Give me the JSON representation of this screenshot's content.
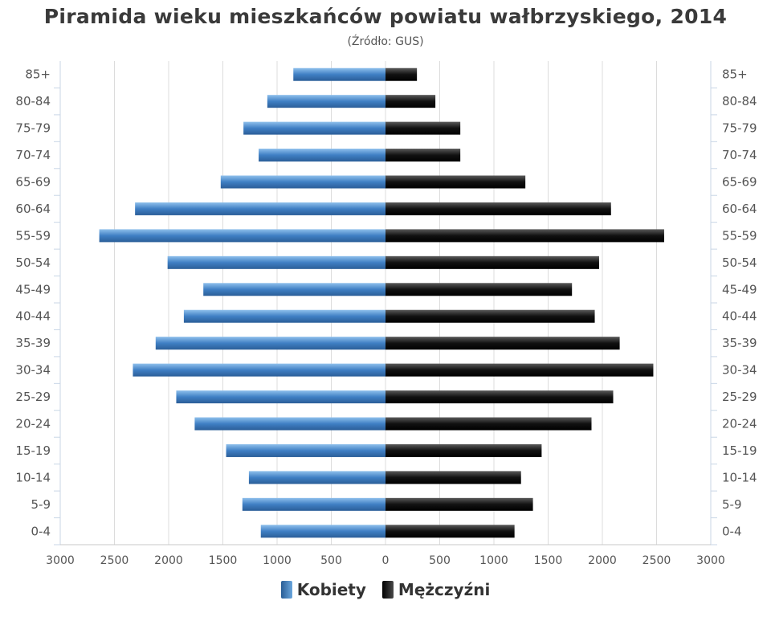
{
  "chart_data": {
    "type": "bar",
    "title": "Piramida wieku mieszkańców powiatu wałbrzyskiego, 2014",
    "subtitle": "(Źródło: GUS)",
    "categories": [
      "0-4",
      "5-9",
      "10-14",
      "15-19",
      "20-24",
      "25-29",
      "30-34",
      "35-39",
      "40-44",
      "45-49",
      "50-54",
      "55-59",
      "60-64",
      "65-69",
      "70-74",
      "75-79",
      "80-84",
      "85+"
    ],
    "series": [
      {
        "name": "Kobiety",
        "values": [
          1150,
          1320,
          1260,
          1470,
          1760,
          1930,
          2330,
          2120,
          1860,
          1680,
          2010,
          2640,
          2310,
          1520,
          1170,
          1310,
          1090,
          850
        ],
        "color": "#3d7cc2"
      },
      {
        "name": "Mężczyźni",
        "values": [
          1190,
          1360,
          1250,
          1440,
          1900,
          2100,
          2470,
          2160,
          1930,
          1720,
          1970,
          2570,
          2080,
          1290,
          690,
          690,
          460,
          290
        ],
        "color": "#111111"
      }
    ],
    "xticks": [
      "3000",
      "2500",
      "2000",
      "1500",
      "1000",
      "500",
      "0",
      "500",
      "1000",
      "1500",
      "2000",
      "2500",
      "3000"
    ],
    "xlim": [
      -3000,
      3000
    ],
    "grid": true,
    "legend": "bottom"
  }
}
